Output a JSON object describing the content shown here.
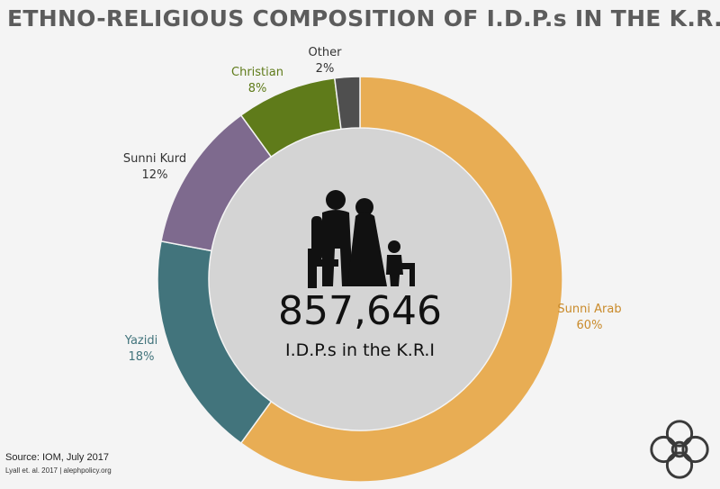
{
  "title": "ETHNO-RELIGIOUS COMPOSITION OF I.D.P.s IN THE K.R.I",
  "title_dot": ".",
  "chart_data": {
    "type": "pie",
    "title": "ETHNO-RELIGIOUS COMPOSITION OF I.D.P.s IN THE K.R.I.",
    "categories": [
      "Sunni Arab",
      "Yazidi",
      "Sunni Kurd",
      "Christian",
      "Other"
    ],
    "values": [
      60,
      18,
      12,
      8,
      2
    ],
    "labels": [
      "60%",
      "18%",
      "12%",
      "8%",
      "2%"
    ],
    "colors": [
      "#e8ad54",
      "#42747c",
      "#7e6a8e",
      "#5f7b1a",
      "#4f4f4f"
    ],
    "label_colors": [
      "#c98a2a",
      "#42747c",
      "#333333",
      "#5f7b1a",
      "#333333"
    ]
  },
  "center": {
    "number": "857,646",
    "caption": "I.D.P.s in the K.R.I",
    "icon": "family-icon"
  },
  "footer": {
    "source": "Source: IOM, July 2017",
    "credit": "Lyall et. al. 2017 | alephpolicy.org"
  },
  "logo": "knot-logo"
}
